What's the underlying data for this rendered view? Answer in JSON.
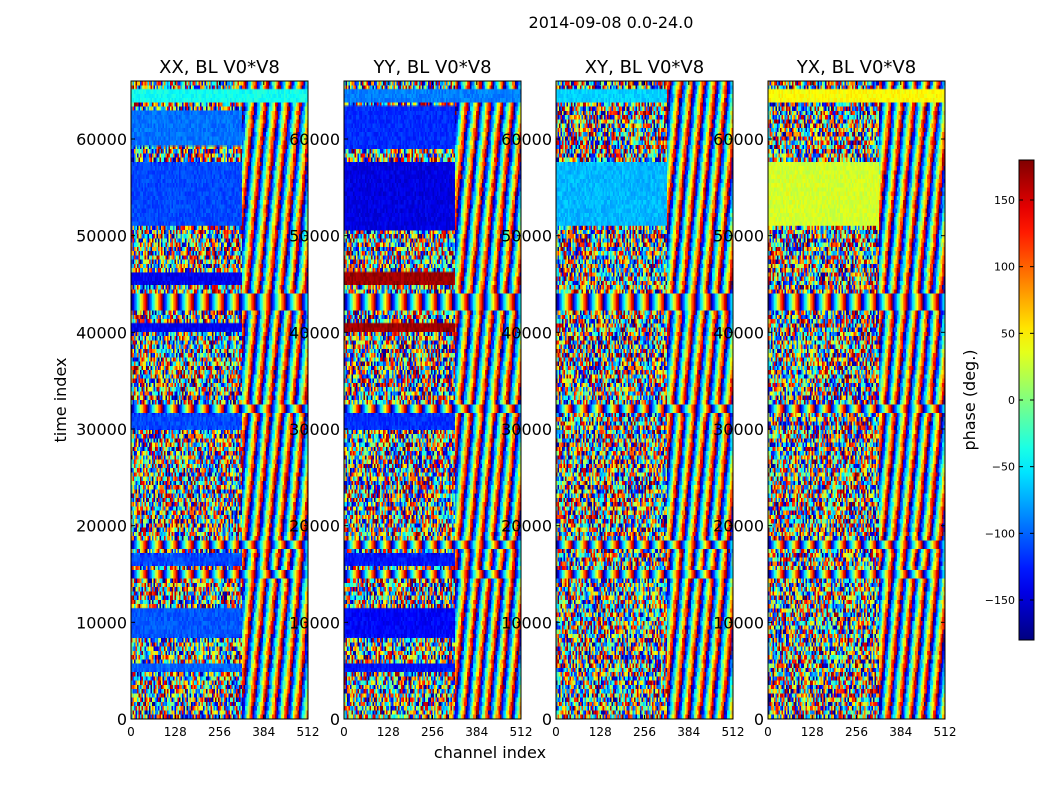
{
  "chart_data": {
    "type": "heatmap",
    "suptitle": "2014-09-08 0.0-24.0",
    "xlabel": "channel index",
    "ylabel": "time index",
    "xlim": [
      0,
      512
    ],
    "ylim": [
      0,
      66000
    ],
    "xticks": [
      0,
      128,
      256,
      384,
      512
    ],
    "yticks": [
      0,
      10000,
      20000,
      30000,
      40000,
      50000,
      60000
    ],
    "colorbar": {
      "label": "phase (deg.)",
      "range": [
        -180,
        180
      ],
      "ticks": [
        -150,
        -100,
        -50,
        0,
        50,
        100,
        150
      ],
      "colormap": "jet"
    },
    "panels": [
      {
        "title": "XX, BL V0*V8",
        "bands": [
          {
            "t0": 63800,
            "t1": 65200,
            "phase": -40,
            "ch_max": 512
          },
          {
            "t0": 59200,
            "t1": 63000,
            "phase": -95,
            "ch_max": 320
          },
          {
            "t0": 51000,
            "t1": 57500,
            "phase": -110,
            "ch_max": 320
          },
          {
            "t0": 45000,
            "t1": 46200,
            "phase": -140,
            "ch_max": 320
          },
          {
            "t0": 40200,
            "t1": 41000,
            "phase": -140,
            "ch_max": 320
          },
          {
            "t0": 30000,
            "t1": 31500,
            "phase": -110,
            "ch_max": 320
          },
          {
            "t0": 16000,
            "t1": 17000,
            "phase": -110,
            "ch_max": 320
          },
          {
            "t0": 8500,
            "t1": 11500,
            "phase": -105,
            "ch_max": 320
          },
          {
            "t0": 5000,
            "t1": 5700,
            "phase": -100,
            "ch_max": 320
          }
        ]
      },
      {
        "title": "YY, BL V0*V8",
        "bands": [
          {
            "t0": 63800,
            "t1": 65200,
            "phase": -90,
            "ch_max": 512
          },
          {
            "t0": 59000,
            "t1": 63500,
            "phase": -120,
            "ch_max": 320
          },
          {
            "t0": 50500,
            "t1": 57500,
            "phase": -145,
            "ch_max": 320
          },
          {
            "t0": 45000,
            "t1": 46300,
            "phase": 170,
            "ch_max": 320
          },
          {
            "t0": 40200,
            "t1": 41000,
            "phase": 170,
            "ch_max": 320
          },
          {
            "t0": 30000,
            "t1": 31500,
            "phase": -120,
            "ch_max": 320
          },
          {
            "t0": 16000,
            "t1": 17000,
            "phase": -130,
            "ch_max": 320
          },
          {
            "t0": 8500,
            "t1": 11500,
            "phase": -135,
            "ch_max": 320
          },
          {
            "t0": 5000,
            "t1": 5700,
            "phase": -130,
            "ch_max": 320
          }
        ]
      },
      {
        "title": "XY, BL V0*V8",
        "bands": [
          {
            "t0": 63800,
            "t1": 65200,
            "phase": -60,
            "ch_max": 320
          },
          {
            "t0": 51000,
            "t1": 57500,
            "phase": -70,
            "ch_max": 320
          }
        ]
      },
      {
        "title": "YX, BL V0*V8",
        "bands": [
          {
            "t0": 63800,
            "t1": 65200,
            "phase": 45,
            "ch_max": 512
          },
          {
            "t0": 51000,
            "t1": 57500,
            "phase": 30,
            "ch_max": 320
          }
        ]
      }
    ],
    "stripe_rows": [
      43500,
      42800,
      32000,
      18000,
      15000
    ]
  }
}
